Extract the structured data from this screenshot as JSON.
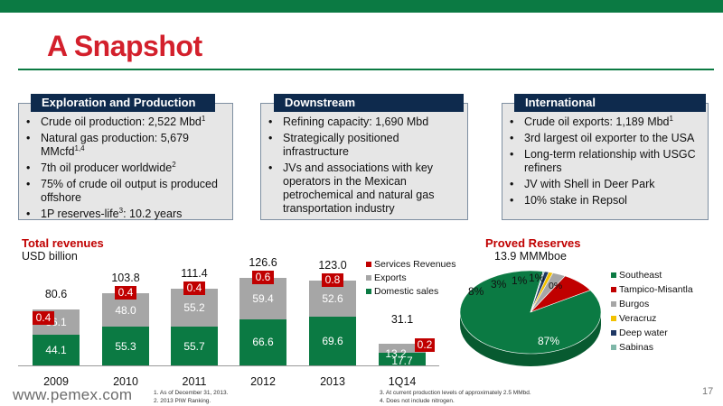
{
  "title": "A Snapshot",
  "boxes": [
    {
      "header": "Exploration and Production",
      "items": [
        {
          "text": "Crude oil production: 2,522 Mbd",
          "sup": "1"
        },
        {
          "text": "Natural gas production: 5,679 MMcfd",
          "sup": "1,4"
        },
        {
          "text": "7th oil producer worldwide",
          "sup": "2"
        },
        {
          "text": "75% of crude oil output is produced offshore",
          "sup": ""
        },
        {
          "text": "1P reserves-life",
          "sup": "3",
          "suffix": ": 10.2 years"
        }
      ]
    },
    {
      "header": "Downstream",
      "items": [
        {
          "text": "Refining capacity: 1,690 Mbd",
          "sup": ""
        },
        {
          "text": "Strategically positioned infrastructure",
          "sup": ""
        },
        {
          "text": "JVs and associations with key operators in the Mexican petrochemical and natural gas transportation industry",
          "sup": ""
        }
      ]
    },
    {
      "header": "International",
      "items": [
        {
          "text": "Crude oil exports: 1,189 Mbd",
          "sup": "1"
        },
        {
          "text": "3rd largest oil exporter to the USA",
          "sup": ""
        },
        {
          "text": "Long-term relationship with USGC refiners",
          "sup": ""
        },
        {
          "text": "JV with Shell in Deer Park",
          "sup": ""
        },
        {
          "text": "10% stake in Repsol",
          "sup": ""
        }
      ]
    }
  ],
  "revenues": {
    "title": "Total revenues",
    "unit": "USD billion"
  },
  "reserves": {
    "title": "Proved Reserves",
    "subtitle": "13.9 MMMboe"
  },
  "colors": {
    "green": "#0b7a43",
    "gray": "#a6a6a6",
    "red": "#c00000",
    "navy": "#0e2a4d",
    "yellow": "#f2c100",
    "darkblue": "#1f3864",
    "teal": "#7fb7a8"
  },
  "chart_data": [
    {
      "type": "bar",
      "stacked": true,
      "title": "Total revenues",
      "ylabel": "USD billion",
      "categories": [
        "2009",
        "2010",
        "2011",
        "2012",
        "2013",
        "1Q14"
      ],
      "series": [
        {
          "name": "Domestic sales",
          "color": "#0b7a43",
          "values": [
            44.1,
            55.3,
            55.7,
            66.6,
            69.6,
            17.7
          ]
        },
        {
          "name": "Exports",
          "color": "#a6a6a6",
          "values": [
            36.1,
            48.0,
            55.2,
            59.4,
            52.6,
            13.2
          ]
        },
        {
          "name": "Services Revenues",
          "color": "#c00000",
          "values": [
            0.4,
            0.4,
            0.4,
            0.6,
            0.8,
            0.2
          ]
        }
      ],
      "totals": [
        80.6,
        103.8,
        111.4,
        126.6,
        123.0,
        31.1
      ],
      "legend_order": [
        "Services Revenues",
        "Exports",
        "Domestic sales"
      ],
      "legend": "right"
    },
    {
      "type": "pie",
      "title": "Proved Reserves",
      "subtitle": "13.9 MMMboe",
      "slices": [
        {
          "name": "Southeast",
          "value": 87,
          "label": "87%",
          "color": "#0b7a43"
        },
        {
          "name": "Tampico-Misantla",
          "value": 8,
          "label": "8%",
          "color": "#c00000"
        },
        {
          "name": "Burgos",
          "value": 3,
          "label": "3%",
          "color": "#a6a6a6"
        },
        {
          "name": "Veracruz",
          "value": 1,
          "label": "1%",
          "color": "#f2c100"
        },
        {
          "name": "Deep water",
          "value": 1,
          "label": "1%",
          "color": "#1f3864"
        },
        {
          "name": "Sabinas",
          "value": 0,
          "label": "0%",
          "color": "#7fb7a8"
        }
      ],
      "legend": "right"
    }
  ],
  "footer": {
    "url": "www.pemex.com",
    "notes": [
      "1.   As of December 31, 2013.",
      "2.   2013 PIW Ranking.",
      "3.   At current production levels of approximately 2.5 MMbd.",
      "4.   Does not include nitrogen."
    ],
    "page": "17"
  }
}
